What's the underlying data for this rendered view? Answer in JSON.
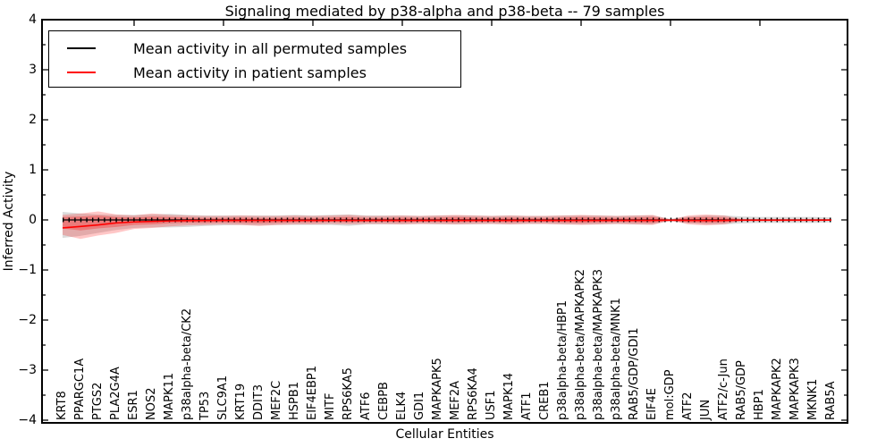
{
  "title": "Signaling mediated by p38-alpha and p38-beta -- 79 samples",
  "legend": {
    "items": [
      {
        "label": "Mean activity in all permuted samples",
        "color": "#000000"
      },
      {
        "label": "Mean activity in patient samples",
        "color": "#ff0000"
      }
    ]
  },
  "chart_data": {
    "type": "line",
    "title": "Signaling mediated by p38-alpha and p38-beta -- 79 samples",
    "xlabel": "Cellular Entities",
    "ylabel": "Inferred Activity",
    "ylim": [
      -4,
      4
    ],
    "ytick_labels": [
      "4",
      "3",
      "2",
      "1",
      "0",
      "−1",
      "−2",
      "−3",
      "−4"
    ],
    "ytick_values": [
      4,
      3,
      2,
      1,
      0,
      -1,
      -2,
      -3,
      -4
    ],
    "yminor_values": [
      3.5,
      2.5,
      1.5,
      0.5,
      -0.5,
      -1.5,
      -2.5,
      -3.5
    ],
    "grid": false,
    "legend_position": "upper left",
    "categories": [
      "KRT8",
      "PPARGC1A",
      "PTGS2",
      "PLA2G4A",
      "ESR1",
      "NOS2",
      "MAPK11",
      "p38alpha-beta/CK2",
      "TP53",
      "SLC9A1",
      "KRT19",
      "DDIT3",
      "MEF2C",
      "HSPB1",
      "EIF4EBP1",
      "MITF",
      "RPS6KA5",
      "ATF6",
      "CEBPB",
      "ELK4",
      "GDI1",
      "MAPKAPK5",
      "MEF2A",
      "RPS6KA4",
      "USF1",
      "MAPK14",
      "ATF1",
      "CREB1",
      "p38alpha-beta/HBP1",
      "p38alpha-beta/MAPKAPK2",
      "p38alpha-beta/MAPKAPK3",
      "p38alpha-beta/MNK1",
      "RAB5/GDP/GDI1",
      "EIF4E",
      "mol:GDP",
      "ATF2",
      "JUN",
      "ATF2/c-Jun",
      "RAB5/GDP",
      "HBP1",
      "MAPKAPK2",
      "MAPKAPK3",
      "MKNK1",
      "RAB5A"
    ],
    "series": [
      {
        "name": "Mean activity in all permuted samples",
        "color": "#000000",
        "values": [
          0,
          0,
          0,
          0,
          0,
          0,
          0,
          0,
          0,
          0,
          0,
          0,
          0,
          0,
          0,
          0,
          0,
          0,
          0,
          0,
          0,
          0,
          0,
          0,
          0,
          0,
          0,
          0,
          0,
          0,
          0,
          0,
          0,
          0,
          0,
          0,
          0,
          0,
          0,
          0,
          0,
          0,
          0,
          0
        ]
      },
      {
        "name": "Mean activity in patient samples",
        "color": "#ff0000",
        "values": [
          -0.16,
          -0.13,
          -0.1,
          -0.06,
          -0.04,
          -0.03,
          -0.02,
          -0.015,
          -0.012,
          -0.01,
          -0.01,
          -0.01,
          -0.01,
          -0.01,
          -0.01,
          -0.01,
          -0.01,
          -0.01,
          -0.01,
          -0.01,
          -0.01,
          -0.01,
          -0.01,
          -0.01,
          -0.01,
          -0.01,
          -0.01,
          -0.01,
          -0.01,
          -0.01,
          -0.01,
          -0.01,
          -0.01,
          -0.01,
          -0.005,
          -0.01,
          -0.012,
          -0.01,
          -0.006,
          -0.005,
          -0.005,
          -0.005,
          -0.005,
          -0.004
        ]
      }
    ],
    "bands": [
      {
        "name": "permuted-samples-range",
        "color": "#888888",
        "opacity": 0.3,
        "upper": [
          0.16,
          0.13,
          0.11,
          0.1,
          0.1,
          0.11,
          0.12,
          0.1,
          0.09,
          0.09,
          0.09,
          0.09,
          0.09,
          0.1,
          0.09,
          0.1,
          0.11,
          0.09,
          0.09,
          0.09,
          0.08,
          0.09,
          0.09,
          0.09,
          0.08,
          0.09,
          0.08,
          0.08,
          0.09,
          0.09,
          0.09,
          0.08,
          0.09,
          0.09,
          0.02,
          0.07,
          0.09,
          0.09,
          0.07,
          0.06,
          0.06,
          0.06,
          0.06,
          0.05
        ],
        "lower": [
          -0.36,
          -0.32,
          -0.26,
          -0.2,
          -0.16,
          -0.15,
          -0.15,
          -0.14,
          -0.12,
          -0.11,
          -0.1,
          -0.11,
          -0.1,
          -0.1,
          -0.1,
          -0.1,
          -0.12,
          -0.09,
          -0.09,
          -0.09,
          -0.08,
          -0.09,
          -0.09,
          -0.09,
          -0.08,
          -0.09,
          -0.08,
          -0.08,
          -0.09,
          -0.09,
          -0.09,
          -0.08,
          -0.09,
          -0.09,
          -0.02,
          -0.07,
          -0.09,
          -0.09,
          -0.07,
          -0.06,
          -0.06,
          -0.06,
          -0.06,
          -0.05
        ]
      },
      {
        "name": "patient-samples-range-outer",
        "color": "#ff0000",
        "opacity": 0.22,
        "upper": [
          0.1,
          0.13,
          0.17,
          0.11,
          0.09,
          0.13,
          0.1,
          0.09,
          0.08,
          0.08,
          0.09,
          0.08,
          0.08,
          0.09,
          0.08,
          0.09,
          0.1,
          0.08,
          0.08,
          0.09,
          0.08,
          0.09,
          0.1,
          0.09,
          0.08,
          0.09,
          0.08,
          0.08,
          0.09,
          0.1,
          0.09,
          0.08,
          0.09,
          0.1,
          0.01,
          0.09,
          0.11,
          0.09,
          0.02,
          0.02,
          0.02,
          0.02,
          0.02,
          0.015
        ],
        "lower": [
          -0.3,
          -0.38,
          -0.31,
          -0.26,
          -0.18,
          -0.16,
          -0.13,
          -0.11,
          -0.1,
          -0.09,
          -0.1,
          -0.12,
          -0.1,
          -0.09,
          -0.09,
          -0.08,
          -0.09,
          -0.08,
          -0.08,
          -0.09,
          -0.08,
          -0.08,
          -0.09,
          -0.08,
          -0.08,
          -0.09,
          -0.08,
          -0.08,
          -0.09,
          -0.1,
          -0.09,
          -0.08,
          -0.09,
          -0.1,
          -0.01,
          -0.09,
          -0.11,
          -0.09,
          -0.02,
          -0.02,
          -0.02,
          -0.02,
          -0.02,
          -0.015
        ]
      },
      {
        "name": "patient-samples-range-inner",
        "color": "#ff0000",
        "opacity": 0.28,
        "upper": [
          0.06,
          0.07,
          0.09,
          0.06,
          0.05,
          0.07,
          0.06,
          0.05,
          0.04,
          0.04,
          0.05,
          0.04,
          0.04,
          0.05,
          0.04,
          0.05,
          0.06,
          0.04,
          0.04,
          0.05,
          0.04,
          0.05,
          0.06,
          0.05,
          0.04,
          0.05,
          0.04,
          0.04,
          0.05,
          0.06,
          0.05,
          0.04,
          0.05,
          0.06,
          0.005,
          0.05,
          0.06,
          0.05,
          0.01,
          0.01,
          0.01,
          0.01,
          0.01,
          0.008
        ],
        "lower": [
          -0.17,
          -0.21,
          -0.17,
          -0.14,
          -0.1,
          -0.09,
          -0.07,
          -0.06,
          -0.06,
          -0.05,
          -0.06,
          -0.07,
          -0.06,
          -0.05,
          -0.05,
          -0.04,
          -0.05,
          -0.04,
          -0.04,
          -0.05,
          -0.04,
          -0.04,
          -0.05,
          -0.04,
          -0.04,
          -0.05,
          -0.04,
          -0.04,
          -0.05,
          -0.06,
          -0.05,
          -0.04,
          -0.05,
          -0.06,
          -0.005,
          -0.05,
          -0.06,
          -0.05,
          -0.01,
          -0.01,
          -0.01,
          -0.01,
          -0.01,
          -0.008
        ]
      }
    ]
  }
}
